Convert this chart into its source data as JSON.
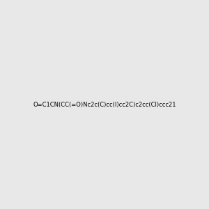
{
  "smiles": "O=C1CN(CC(=O)Nc2c(C)cc(I)cc2C)c2cc(Cl)ccc21",
  "title": "",
  "bg_color": "#e8e8e8",
  "fig_width": 3.0,
  "fig_height": 3.0,
  "dpi": 100
}
